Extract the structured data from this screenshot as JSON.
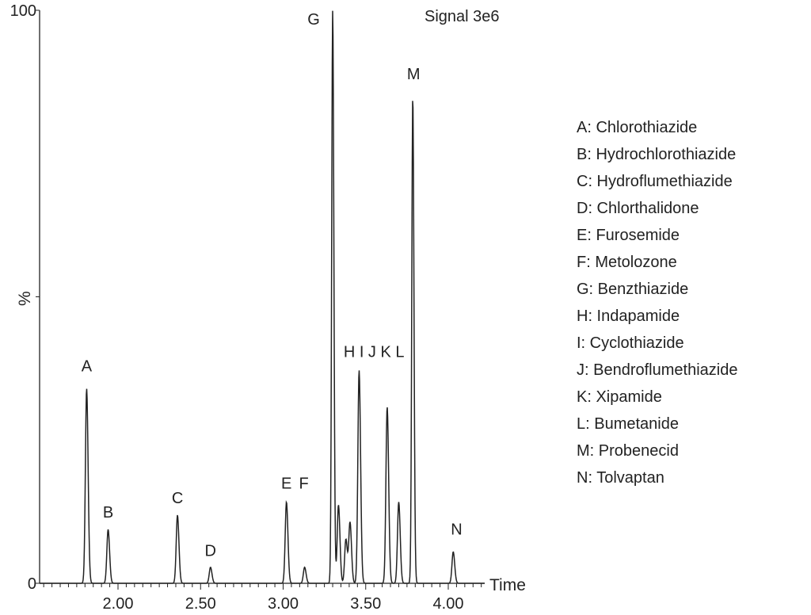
{
  "chart_data": {
    "type": "line",
    "title": "Signal 3e6",
    "xlabel": "Time",
    "ylabel": "%",
    "xlim": [
      1.54,
      4.22
    ],
    "ylim": [
      0,
      100
    ],
    "x_ticks": [
      "2.00",
      "2.50",
      "3.00",
      "3.50",
      "4.00"
    ],
    "x_tick_values": [
      2.0,
      2.5,
      3.0,
      3.5,
      4.0
    ],
    "y_ticks": [
      "0",
      "%",
      "100"
    ],
    "grid": false,
    "line_color": "#222222",
    "peaks": [
      {
        "label": "A",
        "time": 1.81,
        "height": 34
      },
      {
        "label": "B",
        "time": 1.94,
        "height": 9.4
      },
      {
        "label": "C",
        "time": 2.36,
        "height": 11.9
      },
      {
        "label": "D",
        "time": 2.56,
        "height": 2.8
      },
      {
        "label": "E",
        "time": 3.02,
        "height": 14.2
      },
      {
        "label": "F",
        "time": 3.13,
        "height": 2.8
      },
      {
        "label": "G",
        "time": 3.3,
        "height": 100
      },
      {
        "label": "H",
        "time": 3.335,
        "height": 13.7
      },
      {
        "label": "I",
        "time": 3.38,
        "height": 7.7
      },
      {
        "label": "J",
        "time": 3.405,
        "height": 10.6
      },
      {
        "label": "",
        "time": 3.46,
        "height": 37.2
      },
      {
        "label": "K",
        "time": 3.63,
        "height": 30.8
      },
      {
        "label": "L",
        "time": 3.7,
        "height": 14.2
      },
      {
        "label": "M",
        "time": 3.785,
        "height": 85
      },
      {
        "label": "N",
        "time": 4.03,
        "height": 5.5
      }
    ],
    "annotations": [
      {
        "text": "A",
        "time": 1.81,
        "level": 37
      },
      {
        "text": "B",
        "time": 1.94,
        "level": 11.5
      },
      {
        "text": "C",
        "time": 2.36,
        "height": 14,
        "level": 14
      },
      {
        "text": "D",
        "time": 2.56,
        "level": 4.8
      },
      {
        "text": "E",
        "time": 3.02,
        "level": 16.5
      },
      {
        "text": "F",
        "time": 3.125,
        "level": 16.5
      },
      {
        "text": "G",
        "time": 3.185,
        "level": 97.5
      },
      {
        "text": "H I J K L",
        "time": 3.55,
        "level": 39.5
      },
      {
        "text": "M",
        "time": 3.79,
        "level": 88
      },
      {
        "text": "N",
        "time": 4.05,
        "level": 8.5
      }
    ],
    "legend_position": "right",
    "legend": [
      "A:  Chlorothiazide",
      "B:  Hydrochlorothiazide",
      "C:  Hydroflumethiazide",
      "D:  Chlorthalidone",
      "E:  Furosemide",
      "F:  Metolozone",
      "G:  Benzthiazide",
      "H:  Indapamide",
      "I:  Cyclothiazide",
      "J:  Bendroflumethiazide",
      "K:  Xipamide",
      "L:  Bumetanide",
      "M:  Probenecid",
      "N:  Tolvaptan"
    ]
  }
}
